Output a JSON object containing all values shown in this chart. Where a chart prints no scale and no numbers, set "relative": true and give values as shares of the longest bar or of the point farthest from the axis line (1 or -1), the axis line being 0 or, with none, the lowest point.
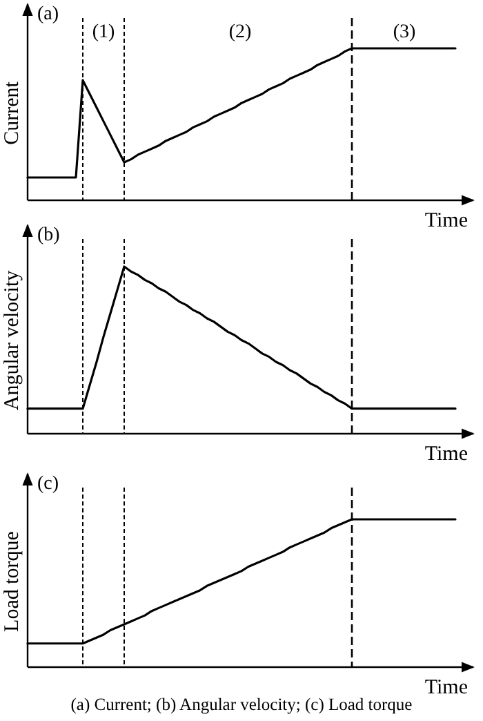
{
  "chart_data": [
    {
      "type": "line",
      "title": "(a)",
      "xlabel": "Time",
      "ylabel": "Current",
      "relative": true,
      "marker": "none",
      "line_style": "solid",
      "categories": [
        null,
        null,
        null,
        null,
        null,
        null,
        null,
        null,
        null,
        null,
        null,
        null,
        null,
        null,
        null,
        null,
        null,
        null,
        null,
        null,
        null,
        null,
        null,
        null,
        null,
        null,
        null,
        null,
        null,
        null,
        null,
        null,
        null,
        null,
        null,
        null,
        null,
        null,
        null,
        null,
        null,
        null,
        null,
        null,
        null,
        null,
        null,
        null,
        null,
        null,
        null,
        null,
        null,
        null,
        null,
        null,
        null,
        null,
        null,
        null,
        null,
        null,
        null
      ],
      "series": [
        {
          "color": "#000000",
          "values": [
            0.15,
            0.15,
            0.15,
            0.15,
            0.15,
            0.15,
            0.15,
            0.15,
            0.79,
            0.7,
            0.61,
            0.52,
            0.43,
            0.34,
            0.25,
            0.27,
            0.3,
            0.32,
            0.34,
            0.36,
            0.39,
            0.41,
            0.43,
            0.45,
            0.48,
            0.5,
            0.52,
            0.55,
            0.57,
            0.59,
            0.61,
            0.64,
            0.66,
            0.68,
            0.7,
            0.73,
            0.75,
            0.77,
            0.8,
            0.82,
            0.84,
            0.86,
            0.89,
            0.91,
            0.93,
            0.95,
            0.98,
            1,
            1,
            1,
            1,
            1,
            1,
            1,
            1,
            1,
            1,
            1,
            1,
            1,
            1,
            1,
            1
          ]
        }
      ],
      "annotations": [
        "(1)",
        "(2)",
        "(3)"
      ]
    },
    {
      "type": "line",
      "title": "(b)",
      "xlabel": "Time",
      "ylabel": "Angular velocity",
      "relative": true,
      "marker": "none",
      "line_style": "solid",
      "categories": [
        null,
        null,
        null,
        null,
        null,
        null,
        null,
        null,
        null,
        null,
        null,
        null,
        null,
        null,
        null,
        null,
        null,
        null,
        null,
        null,
        null,
        null,
        null,
        null,
        null,
        null,
        null,
        null,
        null,
        null,
        null,
        null,
        null,
        null,
        null,
        null,
        null,
        null,
        null,
        null,
        null,
        null,
        null,
        null,
        null,
        null,
        null,
        null,
        null,
        null,
        null,
        null,
        null,
        null,
        null,
        null,
        null,
        null,
        null,
        null,
        null,
        null,
        null
      ],
      "series": [
        {
          "color": "#000000",
          "values": [
            0.15,
            0.15,
            0.15,
            0.15,
            0.15,
            0.15,
            0.15,
            0.15,
            0.15,
            0.29,
            0.43,
            0.58,
            0.72,
            0.86,
            1,
            0.97,
            0.95,
            0.92,
            0.9,
            0.87,
            0.85,
            0.82,
            0.79,
            0.77,
            0.74,
            0.72,
            0.69,
            0.67,
            0.64,
            0.61,
            0.59,
            0.56,
            0.54,
            0.51,
            0.48,
            0.46,
            0.43,
            0.41,
            0.38,
            0.36,
            0.33,
            0.3,
            0.28,
            0.25,
            0.23,
            0.2,
            0.18,
            0.15,
            0.15,
            0.15,
            0.15,
            0.15,
            0.15,
            0.15,
            0.15,
            0.15,
            0.15,
            0.15,
            0.15,
            0.15,
            0.15,
            0.15,
            0.15
          ]
        }
      ]
    },
    {
      "type": "line",
      "title": "(c)",
      "xlabel": "Time",
      "ylabel": "Load torque",
      "relative": true,
      "marker": "none",
      "line_style": "solid",
      "categories": [
        null,
        null,
        null,
        null,
        null,
        null,
        null,
        null,
        null,
        null,
        null,
        null,
        null,
        null,
        null,
        null,
        null,
        null,
        null,
        null,
        null,
        null,
        null,
        null,
        null,
        null,
        null,
        null,
        null,
        null,
        null,
        null,
        null,
        null,
        null,
        null,
        null,
        null,
        null,
        null,
        null,
        null,
        null,
        null,
        null,
        null,
        null,
        null,
        null,
        null,
        null,
        null,
        null,
        null,
        null,
        null,
        null,
        null,
        null,
        null,
        null,
        null,
        null
      ],
      "series": [
        {
          "color": "#000000",
          "values": [
            0.16,
            0.16,
            0.16,
            0.16,
            0.16,
            0.16,
            0.16,
            0.16,
            0.16,
            0.18,
            0.2,
            0.22,
            0.25,
            0.27,
            0.29,
            0.31,
            0.33,
            0.35,
            0.38,
            0.4,
            0.42,
            0.44,
            0.46,
            0.48,
            0.5,
            0.52,
            0.55,
            0.57,
            0.59,
            0.61,
            0.63,
            0.65,
            0.68,
            0.7,
            0.72,
            0.74,
            0.76,
            0.78,
            0.81,
            0.83,
            0.85,
            0.87,
            0.89,
            0.91,
            0.94,
            0.96,
            0.98,
            1,
            1,
            1,
            1,
            1,
            1,
            1,
            1,
            1,
            1,
            1,
            1,
            1,
            1,
            1,
            1
          ]
        }
      ],
      "annotations": [
        "(a) Current; (b) Angular velocity; (c) Load torque"
      ]
    }
  ]
}
